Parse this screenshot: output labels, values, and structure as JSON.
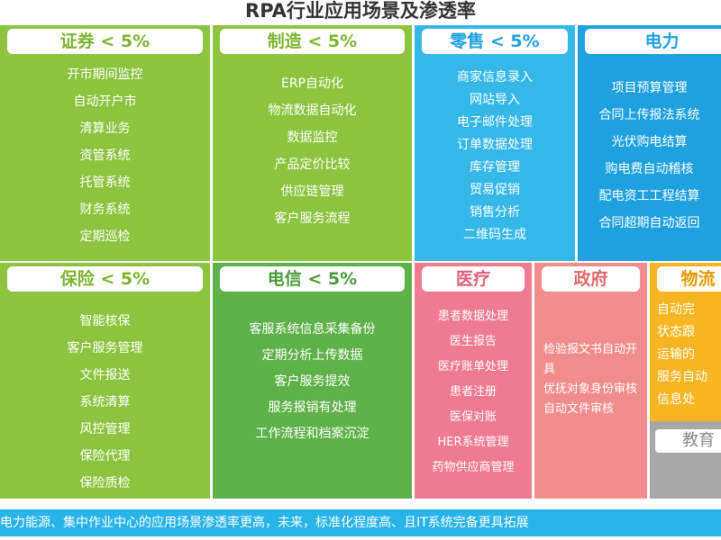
{
  "title": "RPA行业应用场景及渗透率",
  "colors": {
    "green_light": "#8dc43f",
    "green_dark": "#5fb14a",
    "cyan": "#35b8e8",
    "blue": "#1ea1de",
    "pink": "#ef7b92",
    "salmon": "#f28d8d",
    "orange": "#f6b521",
    "grey": "#a7a7a7",
    "footer": "#28b4e8"
  },
  "panels": {
    "securities": {
      "header": "证券 < 5%",
      "items": [
        "开市期间监控",
        "自动开户市",
        "清算业务",
        "资管系统",
        "托管系统",
        "财务系统",
        "定期巡检"
      ]
    },
    "manufacturing": {
      "header": "制造 < 5%",
      "items": [
        "ERP自动化",
        "物流数据自动化",
        "数据监控",
        "产品定价比较",
        "供应链管理",
        "客户服务流程"
      ]
    },
    "retail": {
      "header": "零售 < 5%",
      "items": [
        "商家信息录入",
        "网站导入",
        "电子邮件处理",
        "订单数据处理",
        "库存管理",
        "贸易促销",
        "销售分析",
        "二维码生成"
      ]
    },
    "power": {
      "header": "电力",
      "items": [
        "项目预算管理",
        "合同上传报法系统",
        "光伏购电结算",
        "购电费自动稽核",
        "配电资工工程结算",
        "合同超期自动返回"
      ]
    },
    "insurance": {
      "header": "保险 < 5%",
      "items": [
        "智能核保",
        "客户服务管理",
        "文件报送",
        "系统清算",
        "风控管理",
        "保险代理",
        "保险质检"
      ]
    },
    "telecom": {
      "header": "电信 < 5%",
      "items": [
        "客服系统信息采集备份",
        "定期分析上传数据",
        "客户服务提效",
        "服务报销有处理",
        "工作流程和档案沉淀"
      ]
    },
    "medical": {
      "header": "医疗",
      "items": [
        "患者数据处理",
        "医生报告",
        "医疗账单处理",
        "患者注册",
        "医保对账",
        "HER系统管理",
        "药物供应商管理"
      ]
    },
    "government": {
      "header": "政府",
      "items": [
        "检验报文书自动开具",
        "优抚对象身份审核",
        "自动文件审核"
      ]
    },
    "logistics": {
      "header": "物流",
      "items": [
        "自动完",
        "状态跟",
        "运输的",
        "服务自动",
        "信息处"
      ]
    },
    "education": {
      "header": "教育"
    }
  },
  "footer": "电力能源、集中作业中心的应用场景渗透率更高，未来，标准化程度高、且IT系统完备更具拓展"
}
